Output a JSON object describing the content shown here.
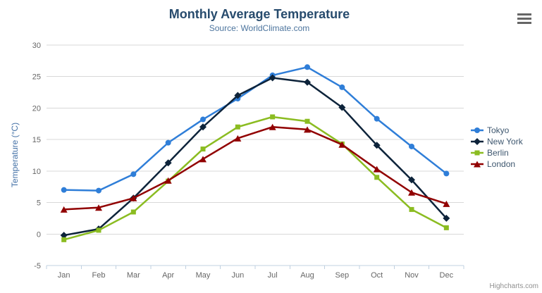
{
  "chart_data": {
    "type": "line",
    "title": "Monthly Average Temperature",
    "subtitle": "Source: WorldClimate.com",
    "ylabel": "Temperature (°C)",
    "xlabel": "",
    "ylim": [
      -5,
      30
    ],
    "yticks": [
      -5,
      0,
      5,
      10,
      15,
      20,
      25,
      30
    ],
    "grid": true,
    "legend_position": "right",
    "categories": [
      "Jan",
      "Feb",
      "Mar",
      "Apr",
      "May",
      "Jun",
      "Jul",
      "Aug",
      "Sep",
      "Oct",
      "Nov",
      "Dec"
    ],
    "series": [
      {
        "name": "Tokyo",
        "color": "#2f7ed8",
        "symbol": "circle",
        "values": [
          7.0,
          6.9,
          9.5,
          14.5,
          18.2,
          21.5,
          25.2,
          26.5,
          23.3,
          18.3,
          13.9,
          9.6
        ]
      },
      {
        "name": "New York",
        "color": "#0d233a",
        "symbol": "diamond",
        "values": [
          -0.2,
          0.8,
          5.7,
          11.3,
          17.0,
          22.0,
          24.8,
          24.1,
          20.1,
          14.1,
          8.6,
          2.5
        ]
      },
      {
        "name": "Berlin",
        "color": "#8bbc21",
        "symbol": "square",
        "values": [
          -0.9,
          0.6,
          3.5,
          8.4,
          13.5,
          17.0,
          18.6,
          17.9,
          14.3,
          9.0,
          3.9,
          1.0
        ]
      },
      {
        "name": "London",
        "color": "#910000",
        "symbol": "triangle",
        "values": [
          3.9,
          4.2,
          5.7,
          8.5,
          11.9,
          15.2,
          17.0,
          16.6,
          14.2,
          10.3,
          6.6,
          4.8
        ]
      }
    ]
  },
  "credits": {
    "label": "Highcharts.com"
  },
  "menu": {
    "icon": "hamburger-icon"
  },
  "styles": {
    "title_color": "#274b6d",
    "subtitle_color": "#4d759e",
    "axis_title_color": "#4572a7",
    "axis_label_color": "#666666",
    "grid_color": "#d8d8d8",
    "axis_line_color": "#c0d0e0",
    "legend_text_color": "#3e576f",
    "credits_color": "#909090",
    "background": "#ffffff"
  }
}
